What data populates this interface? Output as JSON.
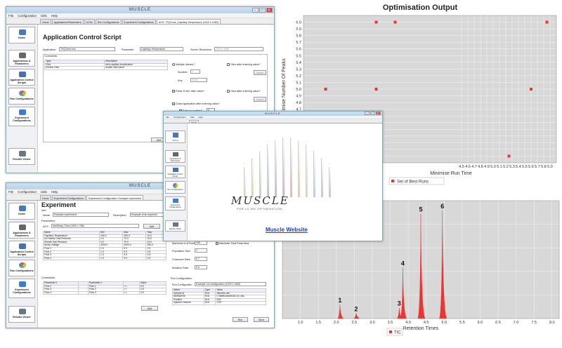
{
  "app_title": "MUSCLE",
  "menu": [
    "File",
    "Configuration",
    "Utils",
    "Help"
  ],
  "sidebar": {
    "home": "Home",
    "apps": "Applications & Parameters",
    "acs": "Application Control Scripts",
    "runs": "Run Configurations",
    "experiments": "Experiment Configurations",
    "results": "Results Viewer"
  },
  "win1": {
    "tabs": [
      "Home",
      "Applications/Parameters",
      "ACSs",
      "Run Configurations",
      "Experiment Configurations",
      "ACS: TSQTune_Capillary Temperature (1920 x 1080)"
    ],
    "title": "Application Control Script",
    "application_label": "Application:",
    "application_value": "TSQTune.exe",
    "parameter_label": "Parameter:",
    "parameter_value": "Capillary Temperature",
    "resolution_label": "Screen Resolution:",
    "resolution_value": "1920 x 1080",
    "comments_label": "Comments:",
    "comments_headers": [
      "Type",
      "Description"
    ],
    "comments_rows": [
      [
        "Click",
        "click capillary temperature"
      ],
      [
        "Double Click",
        "double click value"
      ]
    ],
    "multiple_values": "Multiple Values?",
    "number_label": "Number:",
    "number_value": "1",
    "key_label": "Key:",
    "key_value": "Down",
    "click_after": "Click after entering value?",
    "press_enter": "Press 'Enter' after value?",
    "close_app": "Close application after entering value?",
    "enter_confirm": "Enter to confirm?",
    "enter_count": "4",
    "select_button": "Select",
    "add_button": "Add"
  },
  "win2": {
    "tabs": [
      "Home",
      "Experiment Configurations",
      "Experiment Configuration: Example experiment"
    ],
    "title": "Experiment",
    "info_label": "Info:",
    "name_label": "Name:",
    "name_value": "Example experiment",
    "desc_label": "Description:",
    "desc_value": "Example of an experimi",
    "params_label": "Parameters:",
    "acs_label": "ACS:",
    "acs_value": "InstSetup_Flow (1920 x 768)",
    "add_button": "Add",
    "param_headers": [
      "Name",
      "Min",
      "Max",
      "Step"
    ],
    "param_rows": [
      [
        "Capillary Temperature",
        "150.0",
        "280.0",
        "10.0"
      ],
      [
        "Ion Sweep Gas Pressure",
        "0.0",
        "70.0",
        "10.0"
      ],
      [
        "Sheath Gas Pressure",
        "0.0",
        "70.0",
        "10.0"
      ],
      [
        "Spray Voltage",
        "3000.0",
        "4000.0",
        "250.0"
      ],
      [
        "Flow 1",
        "1.0",
        "9.0",
        "2.0"
      ],
      [
        "Flow 2",
        "1.0",
        "9.0",
        "0.5"
      ],
      [
        "Flow 3",
        "1.0",
        "9.0",
        "0.5"
      ],
      [
        "Flow 4",
        "1.0",
        "9.0",
        "0.5"
      ]
    ],
    "constraints_label": "Constraints:",
    "constraint_headers": [
      "Parameter 1",
      "",
      "Parameter 2",
      "",
      "Value"
    ],
    "constraint_rows": [
      [
        "Flow 2",
        "-",
        "Flow 1",
        "<=",
        "0.5"
      ],
      [
        "Flow 3",
        "-",
        "Flow 2",
        "<=",
        "0.5"
      ],
      [
        "Flow 4",
        "-",
        "Flow 3",
        "<=",
        "0.5"
      ]
    ],
    "add_button2": "Add",
    "max_runs_label": "Maximum # of Runs:",
    "max_runs_value": "100",
    "pop_label": "Population Size:",
    "pop_value": "2",
    "cross_label": "Crossover Rate:",
    "cross_value": "0.7",
    "mut_label": "Mutation Rate:",
    "mut_value": "0.3",
    "max_peak": "Maximise Total Peak Area",
    "run_config_label": "Run Configuration:",
    "run_config_sel_label": "Run Configuratio...",
    "run_config_value": "Example run configuration (1920 x 1080)",
    "run_headers": [
      "Name",
      "Type",
      "Value"
    ],
    "run_rows": [
      [
        "Sample Id",
        "Text",
        "Steroids mix"
      ],
      [
        "MethodFile",
        "Text",
        "C:\\Methods\\MUSCLE_Ms..."
      ],
      [
        "Position",
        "Text",
        "RA1"
      ],
      [
        "Injection Volume",
        "Text",
        "2.00"
      ]
    ],
    "run_button": "Run",
    "save_button": "Save"
  },
  "splash": {
    "tab": "Home",
    "logo": "MUSCLE",
    "subtitle": "FOR LC-MS OPTIMISATION",
    "link": "Muscle Website",
    "colors": [
      "#e8e0b8",
      "#d8e0a8",
      "#c0d8b0",
      "#a8c8d8",
      "#c0b0d8",
      "#d8a8c8",
      "#e8b0b0",
      "#f0c8a8",
      "#d8d8b8",
      "#b8d0e0",
      "#c8c0e0",
      "#e0b8c8"
    ]
  },
  "chart_data": [
    {
      "type": "scatter",
      "title": "Optimisation Output",
      "xlabel": "Minimise Run Time",
      "ylabel": "Maximise Number Of Peaks",
      "ylim": [
        3.9,
        6.1
      ],
      "y_ticks": [
        "4.0",
        "4.1",
        "4.2",
        "4.3",
        "4.4",
        "4.5",
        "4.6",
        "4.7",
        "4.8",
        "4.9",
        "5.0",
        "5.1",
        "5.2",
        "5.3",
        "5.4",
        "5.5",
        "5.6",
        "5.7",
        "5.8",
        "5.9",
        "6.0"
      ],
      "x_ticks": [
        "4.5",
        "4.6",
        "4.7",
        "4.8",
        "4.9",
        "5.0",
        "5.1",
        "5.2",
        "5.3",
        "5.4",
        "5.5",
        "5.6",
        "5.7",
        "5.8",
        "5.9"
      ],
      "legend": "Set of Best Runs",
      "color": "#ee3333",
      "points": [
        {
          "x": 3.15,
          "y": 6.0
        },
        {
          "x": 3.45,
          "y": 6.0
        },
        {
          "x": 5.85,
          "y": 6.0
        },
        {
          "x": 2.35,
          "y": 5.0
        },
        {
          "x": 3.15,
          "y": 5.0
        },
        {
          "x": 5.6,
          "y": 5.0
        },
        {
          "x": 5.25,
          "y": 4.0
        }
      ]
    },
    {
      "type": "line",
      "xlabel": "Retention Times",
      "x_ticks": [
        "1.0",
        "1.5",
        "2.0",
        "2.5",
        "3.0",
        "3.5",
        "4.0",
        "4.5",
        "5.0",
        "5.5",
        "6.0",
        "6.5",
        "7.0",
        "7.5",
        "8.0"
      ],
      "legend": "TIC",
      "color": "#ee3333",
      "xlim": [
        0.5,
        8.2
      ],
      "peaks": [
        {
          "label": "1",
          "x": 2.1,
          "height": 0.13
        },
        {
          "label": "2",
          "x": 2.55,
          "height": 0.05
        },
        {
          "label": "3",
          "x": 3.75,
          "height": 0.1
        },
        {
          "label": "4",
          "x": 3.85,
          "height": 0.47
        },
        {
          "label": "5",
          "x": 4.35,
          "height": 0.97
        },
        {
          "label": "6",
          "x": 4.95,
          "height": 1.0
        }
      ]
    }
  ]
}
